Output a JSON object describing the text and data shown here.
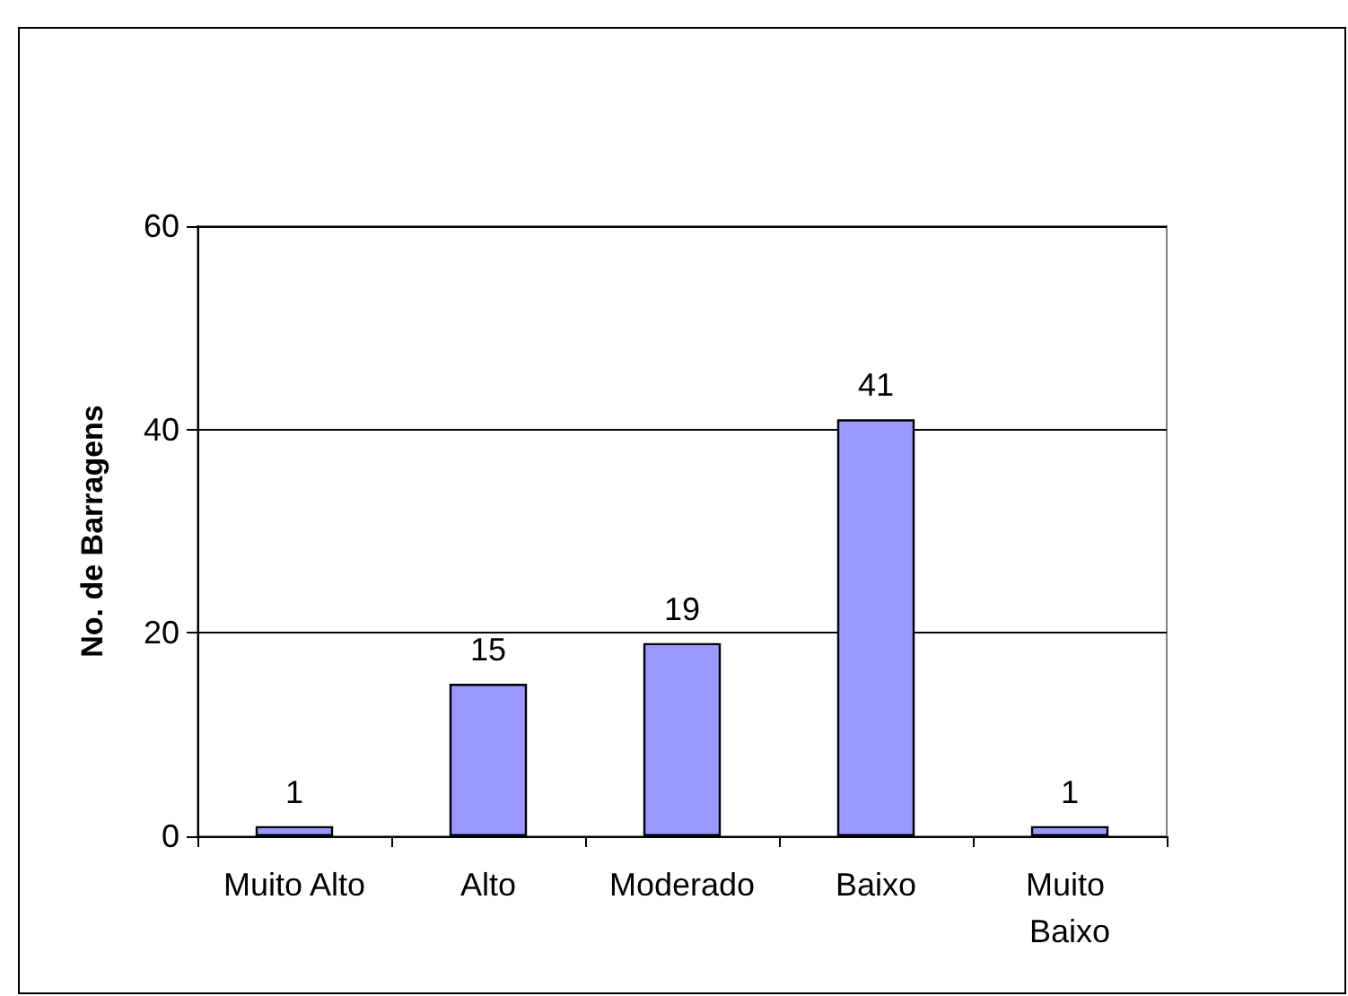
{
  "chart_data": {
    "type": "bar",
    "ylabel": "No. de Barragens",
    "categories": [
      "Muito Alto",
      "Alto",
      "Moderado",
      "Baixo",
      "Muito Baixo"
    ],
    "values": [
      1,
      15,
      19,
      41,
      1
    ],
    "color": "#9999ff",
    "ylim": [
      0,
      60
    ],
    "yticks": [
      0,
      20,
      40,
      60
    ],
    "grid": "y",
    "data_labels": true
  }
}
